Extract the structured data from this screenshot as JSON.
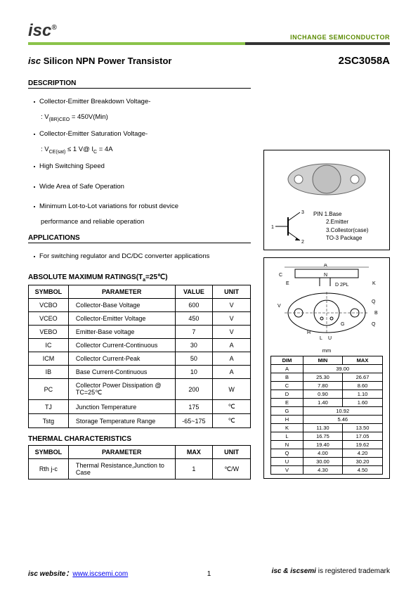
{
  "header": {
    "logo": "isc",
    "logo_sup": "®",
    "tagline": "INCHANGE SEMICONDUCTOR"
  },
  "title": {
    "left_prefix": "isc",
    "left_rest": " Silicon NPN Power Transistor",
    "right": "2SC3058A"
  },
  "description": {
    "heading": "DESCRIPTION",
    "b1": "Collector-Emitter Breakdown Voltage-",
    "b1s": ": V(BR)CEO = 450V(Min)",
    "b2": "Collector-Emitter Saturation Voltage-",
    "b2s": ": VCE(sat) ≤ 1 V@ IC = 4A",
    "b3": "High Switching Speed",
    "b4": "Wide Area of Safe Operation",
    "b5": "Minimum Lot-to-Lot variations for robust device",
    "b5b": "performance and reliable operation"
  },
  "applications": {
    "heading": "APPLICATIONS",
    "b1": "For switching regulator and DC/DC converter applications"
  },
  "ratings": {
    "heading": "ABSOLUTE MAXIMUM RATINGS(Ta=25℃)",
    "columns": [
      "SYMBOL",
      "PARAMETER",
      "VALUE",
      "UNIT"
    ],
    "rows": [
      [
        "VCBO",
        "Collector-Base Voltage",
        "600",
        "V"
      ],
      [
        "VCEO",
        "Collector-Emitter Voltage",
        "450",
        "V"
      ],
      [
        "VEBO",
        "Emitter-Base voltage",
        "7",
        "V"
      ],
      [
        "IC",
        "Collector Current-Continuous",
        "30",
        "A"
      ],
      [
        "ICM",
        "Collector Current-Peak",
        "50",
        "A"
      ],
      [
        "IB",
        "Base Current-Continuous",
        "10",
        "A"
      ],
      [
        "PC",
        "Collector Power Dissipation\n@ TC=25℃",
        "200",
        "W"
      ],
      [
        "TJ",
        "Junction Temperature",
        "175",
        "℃"
      ],
      [
        "Tstg",
        "Storage Temperature Range",
        "-65~175",
        "℃"
      ]
    ]
  },
  "thermal": {
    "heading": "THERMAL CHARACTERISTICS",
    "columns": [
      "SYMBOL",
      "PARAMETER",
      "MAX",
      "UNIT"
    ],
    "rows": [
      [
        "Rth j-c",
        "Thermal Resistance,Junction to Case",
        "1",
        "℃/W"
      ]
    ]
  },
  "package": {
    "pin_label": "PIN",
    "pins": [
      "1.Base",
      "2.Emitter",
      "3.Collestor(case)"
    ],
    "pkg_name": "TO-3  Package"
  },
  "dims": {
    "unit": "mm",
    "columns": [
      "DIM",
      "MIN",
      "MAX"
    ],
    "rows": [
      [
        "A",
        "39.00",
        ""
      ],
      [
        "B",
        "25.30",
        "26.67"
      ],
      [
        "C",
        "7.80",
        "8.60"
      ],
      [
        "D",
        "0.90",
        "1.10"
      ],
      [
        "E",
        "1.40",
        "1.60"
      ],
      [
        "G",
        "10.92",
        ""
      ],
      [
        "H",
        "5.46",
        ""
      ],
      [
        "K",
        "11.30",
        "13.50"
      ],
      [
        "L",
        "16.75",
        "17.05"
      ],
      [
        "N",
        "19.40",
        "19.62"
      ],
      [
        "Q",
        "4.00",
        "4.20"
      ],
      [
        "U",
        "30.00",
        "30.20"
      ],
      [
        "V",
        "4.30",
        "4.50"
      ]
    ]
  },
  "footer": {
    "left_label": "isc website：",
    "left_link": "www.iscsemi.com",
    "right_bold": "isc & iscsemi",
    "right_rest": " is registered trademark",
    "page": "1"
  }
}
